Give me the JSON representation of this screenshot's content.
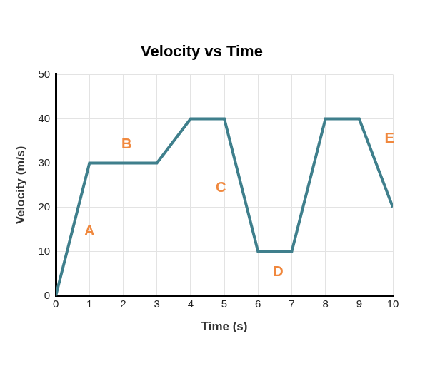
{
  "chart_data": {
    "type": "line",
    "title": "Velocity vs Time",
    "x_label": "Time (s)",
    "y_label": "Velocity (m/s)",
    "x": [
      0,
      1,
      3,
      4,
      5,
      6,
      7,
      8,
      9,
      10
    ],
    "series": [
      {
        "name": "Velocity",
        "color": "#3f7f8c",
        "marker": "none",
        "values": [
          0,
          30,
          30,
          40,
          40,
          10,
          10,
          40,
          40,
          20
        ]
      }
    ],
    "xlim": [
      0,
      10
    ],
    "xticks": [
      0,
      1,
      2,
      3,
      4,
      5,
      6,
      7,
      8,
      9,
      10
    ],
    "ylim": [
      0,
      50
    ],
    "yticks": [
      0,
      10,
      20,
      30,
      40,
      50
    ],
    "grid": true,
    "annotations": [
      {
        "text": "A",
        "x": 1.0,
        "y": 14.5,
        "color": "#f0883e"
      },
      {
        "text": "B",
        "x": 2.1,
        "y": 34.2,
        "color": "#f0883e"
      },
      {
        "text": "C",
        "x": 4.9,
        "y": 24.4,
        "color": "#f0883e"
      },
      {
        "text": "D",
        "x": 6.6,
        "y": 5.3,
        "color": "#f0883e"
      },
      {
        "text": "E",
        "x": 9.9,
        "y": 35.4,
        "color": "#f0883e"
      }
    ]
  }
}
